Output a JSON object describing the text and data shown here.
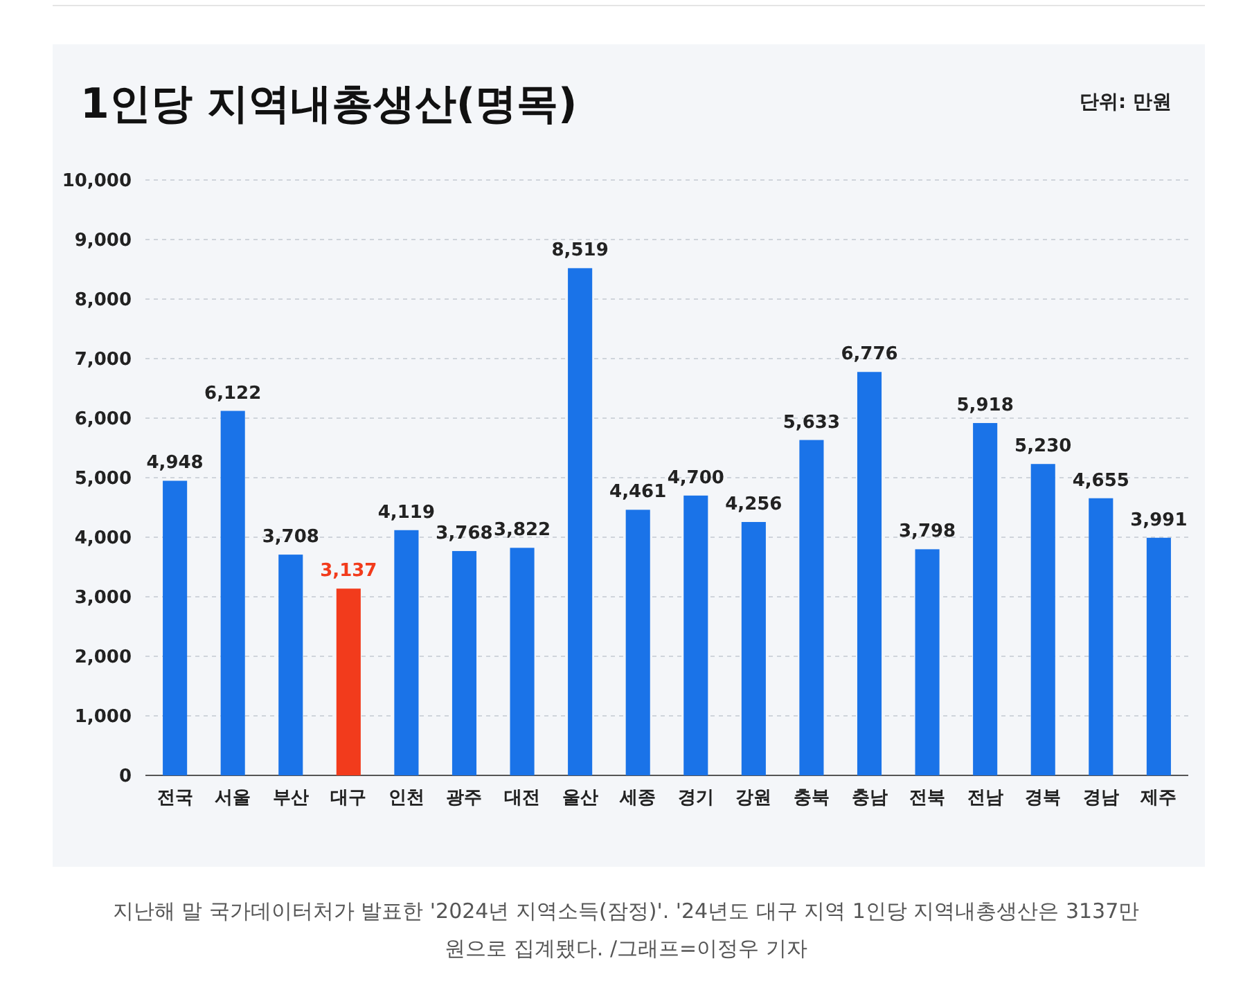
{
  "chart_data": {
    "type": "bar",
    "title": "1인당 지역내총생산(명목)",
    "categories": [
      "전국",
      "서울",
      "부산",
      "대구",
      "인천",
      "광주",
      "대전",
      "울산",
      "세종",
      "경기",
      "강원",
      "충북",
      "충남",
      "전북",
      "전남",
      "경북",
      "경남",
      "제주"
    ],
    "values": [
      4948,
      6122,
      3708,
      3137,
      4119,
      3768,
      3822,
      8519,
      4461,
      4700,
      4256,
      5633,
      6776,
      3798,
      5918,
      5230,
      4655,
      3991
    ],
    "colors": [
      "#1a73e8",
      "#1a73e8",
      "#1a73e8",
      "#f23b1c",
      "#1a73e8",
      "#1a73e8",
      "#1a73e8",
      "#1a73e8",
      "#1a73e8",
      "#1a73e8",
      "#1a73e8",
      "#1a73e8",
      "#1a73e8",
      "#1a73e8",
      "#1a73e8",
      "#1a73e8",
      "#1a73e8",
      "#1a73e8"
    ],
    "ylim": [
      0,
      10000
    ],
    "yticks": [
      {
        "value": 0,
        "label": "0"
      },
      {
        "value": 1000,
        "label": "1,000"
      },
      {
        "value": 2000,
        "label": "2,000"
      },
      {
        "value": 3000,
        "label": "3,000"
      },
      {
        "value": 4000,
        "label": "4,000"
      },
      {
        "value": 5000,
        "label": "5,000"
      },
      {
        "value": 6000,
        "label": "6,000"
      },
      {
        "value": 7000,
        "label": "7,000"
      },
      {
        "value": 8000,
        "label": "8,000"
      },
      {
        "value": 9000,
        "label": "9,000"
      },
      {
        "value": 10000,
        "label": "10,000"
      }
    ],
    "grid": "y",
    "data_labels": true,
    "value_labels": [
      "4,948",
      "6,122",
      "3,708",
      "3,137",
      "4,119",
      "3,768",
      "3,822",
      "8,519",
      "4,461",
      "4,700",
      "4,256",
      "5,633",
      "6,776",
      "3,798",
      "5,918",
      "5,230",
      "4,655",
      "3,991"
    ],
    "annotations": [
      "단위: 만원",
      "지난해 말 국가데이터처가 발표한 '2024년 지역소득(잠정)'. '24년도 대구 지역 1인당 지역내총생산은 3137만 원으로 집계됐다. /그래프=이정우 기자"
    ]
  }
}
